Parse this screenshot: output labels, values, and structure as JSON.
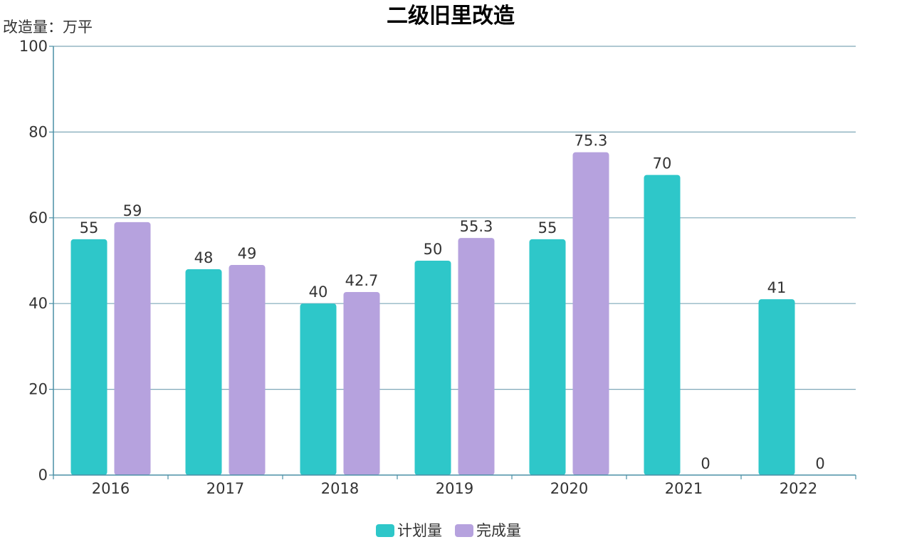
{
  "chart_data": {
    "type": "bar",
    "title": "二级旧里改造",
    "ylabel": "改造量：万平",
    "xlabel": "",
    "categories": [
      "2016",
      "2017",
      "2018",
      "2019",
      "2020",
      "2021",
      "2022"
    ],
    "series": [
      {
        "name": "计划量",
        "color": "#2ec7c9",
        "values": [
          55,
          48,
          40,
          50,
          55,
          70,
          41
        ]
      },
      {
        "name": "完成量",
        "color": "#b6a2de",
        "values": [
          59,
          49,
          42.7,
          55.3,
          75.3,
          0,
          0
        ]
      }
    ],
    "ylim": [
      0,
      100
    ],
    "yticks": [
      0,
      20,
      40,
      60,
      80,
      100
    ],
    "grid": true,
    "legend": "bottom-center"
  }
}
